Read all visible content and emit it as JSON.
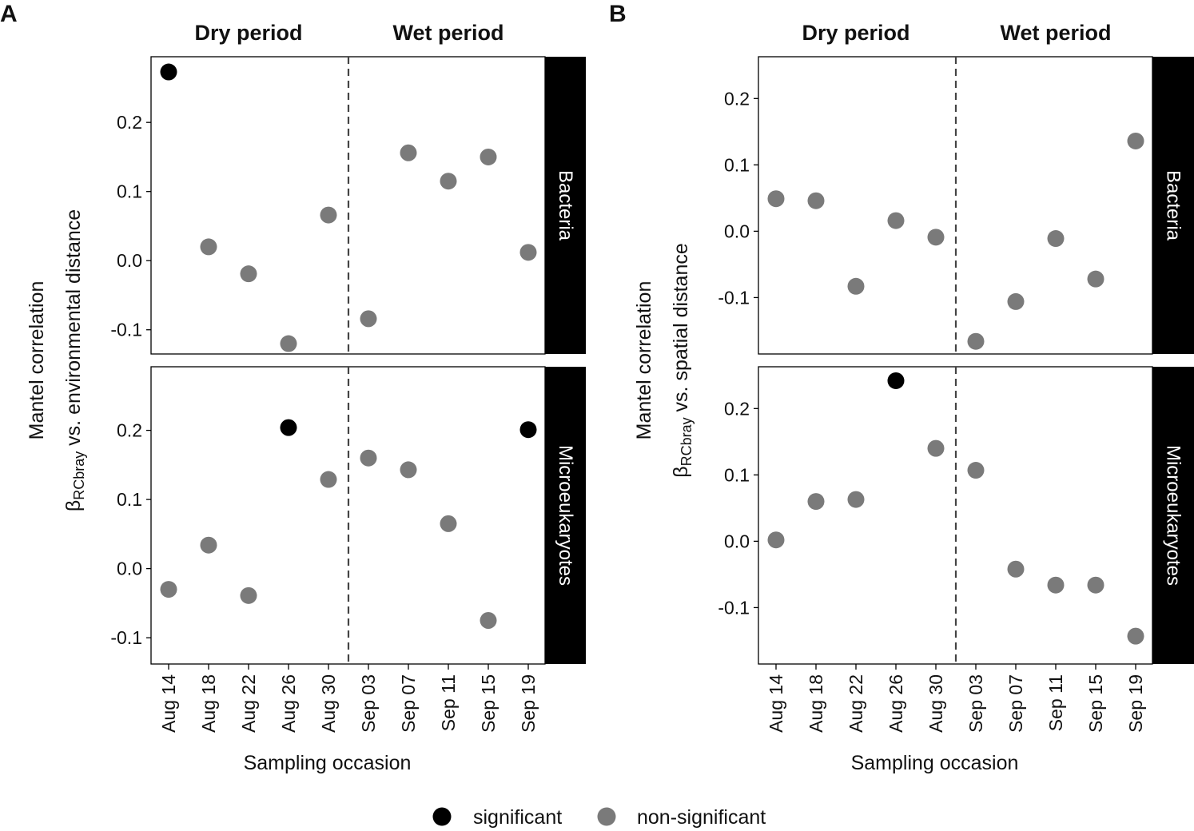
{
  "chart_data": [
    {
      "type": "scatter",
      "panel_label": "A",
      "periods": [
        "Dry period",
        "Wet period"
      ],
      "ylabel_line1": "Mantel correlation",
      "ylabel_line2": {
        "beta": "β",
        "sub": "RCbray",
        "rest": " vs. environmental distance"
      },
      "xlabel": "Sampling occasion",
      "categories": [
        "Aug 14",
        "Aug 18",
        "Aug 22",
        "Aug 26",
        "Aug 30",
        "Sep 03",
        "Sep 07",
        "Sep 11",
        "Sep 15",
        "Sep 19"
      ],
      "period_split_after": "Aug 30",
      "facets": [
        {
          "strip": "Bacteria",
          "ylim": [
            -0.135,
            0.295
          ],
          "yticks": [
            -0.1,
            0.0,
            0.1,
            0.2
          ],
          "ytick_labels": [
            "-0.1",
            "0.0",
            "0.1",
            "0.2"
          ],
          "values": [
            0.273,
            0.02,
            -0.019,
            -0.12,
            0.066,
            -0.084,
            0.156,
            0.115,
            0.15,
            0.012
          ],
          "significant": [
            true,
            false,
            false,
            false,
            false,
            false,
            false,
            false,
            false,
            false
          ]
        },
        {
          "strip": "Microeukaryotes",
          "ylim": [
            -0.138,
            0.292
          ],
          "yticks": [
            -0.1,
            0.0,
            0.1,
            0.2
          ],
          "ytick_labels": [
            "-0.1",
            "0.0",
            "0.1",
            "0.2"
          ],
          "values": [
            -0.03,
            0.034,
            -0.039,
            0.204,
            0.129,
            0.16,
            0.143,
            0.065,
            -0.075,
            0.201
          ],
          "significant": [
            false,
            false,
            false,
            true,
            false,
            false,
            false,
            false,
            false,
            true
          ]
        }
      ]
    },
    {
      "type": "scatter",
      "panel_label": "B",
      "periods": [
        "Dry period",
        "Wet period"
      ],
      "ylabel_line1": "Mantel correlation",
      "ylabel_line2": {
        "beta": "β",
        "sub": "RCbray",
        "rest": " vs. spatial distance"
      },
      "xlabel": "Sampling occasion",
      "categories": [
        "Aug 14",
        "Aug 18",
        "Aug 22",
        "Aug 26",
        "Aug 30",
        "Sep 03",
        "Sep 07",
        "Sep 11",
        "Sep 15",
        "Sep 19"
      ],
      "period_split_after": "Aug 30",
      "facets": [
        {
          "strip": "Bacteria",
          "ylim": [
            -0.185,
            0.263
          ],
          "yticks": [
            -0.1,
            0.0,
            0.1,
            0.2
          ],
          "ytick_labels": [
            "-0.1",
            "0.0",
            "0.1",
            "0.2"
          ],
          "values": [
            0.049,
            0.046,
            -0.083,
            0.016,
            -0.009,
            -0.166,
            -0.106,
            -0.011,
            -0.072,
            0.136
          ],
          "significant": [
            false,
            false,
            false,
            false,
            false,
            false,
            false,
            false,
            false,
            false
          ]
        },
        {
          "strip": "Microeukaryotes",
          "ylim": [
            -0.185,
            0.263
          ],
          "yticks": [
            -0.1,
            0.0,
            0.1,
            0.2
          ],
          "ytick_labels": [
            "-0.1",
            "0.0",
            "0.1",
            "0.2"
          ],
          "values": [
            0.002,
            0.06,
            0.063,
            0.242,
            0.14,
            0.107,
            -0.042,
            -0.066,
            -0.066,
            -0.143
          ],
          "significant": [
            false,
            false,
            false,
            true,
            false,
            false,
            false,
            false,
            false,
            false
          ]
        }
      ]
    }
  ],
  "legend": {
    "items": [
      {
        "label": "significant",
        "color": "#000000"
      },
      {
        "label": "non-significant",
        "color": "#7a7a7a"
      }
    ]
  },
  "colors": {
    "significant": "#000000",
    "non_significant": "#7a7a7a",
    "strip_background": "#000000",
    "strip_text": "#ffffff",
    "divider": "#444444"
  }
}
